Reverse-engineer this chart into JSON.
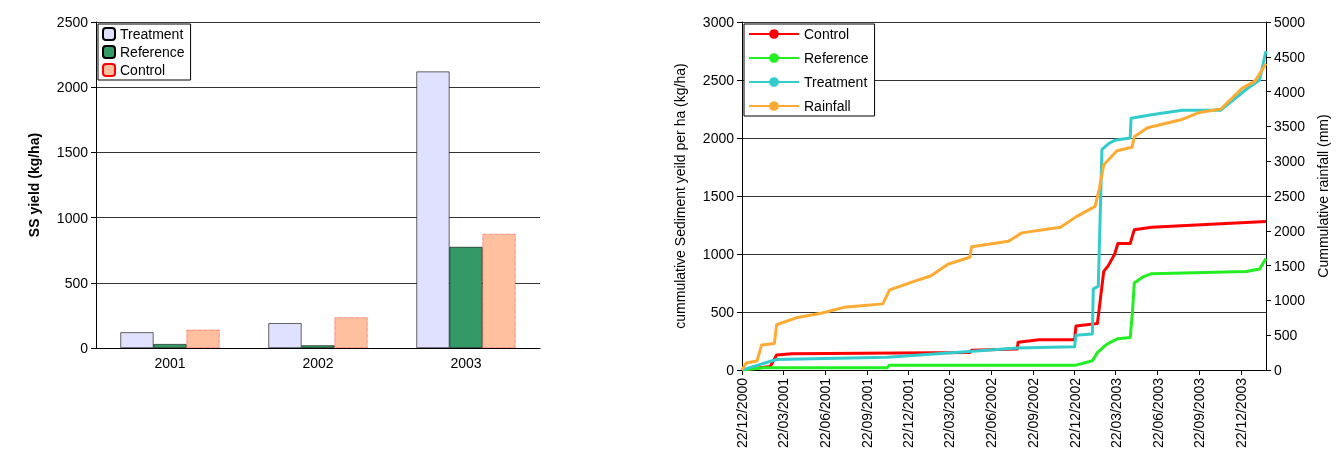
{
  "chart_data": [
    {
      "type": "bar",
      "ylabel": "SS yield (kg/ha)",
      "categories": [
        "2001",
        "2002",
        "2003"
      ],
      "series": [
        {
          "name": "Treatment",
          "color": "#e0e0ff",
          "values": [
            120,
            190,
            2120
          ]
        },
        {
          "name": "Reference",
          "color": "#339966",
          "values": [
            30,
            20,
            775
          ]
        },
        {
          "name": "Control",
          "color": "#ffc0a0",
          "values": [
            140,
            235,
            875
          ]
        }
      ],
      "ylim": [
        0,
        2500
      ],
      "yticks": [
        0,
        500,
        1000,
        1500,
        2000,
        2500
      ],
      "grid": "y",
      "legend": "top left"
    },
    {
      "type": "line",
      "ylabel": "cummulative Sediment yeild per ha (kg/ha)",
      "y2label": "Cummulative rainfall (mm)",
      "marker": "none",
      "series": [
        {
          "name": "Control",
          "color": "#ff0000",
          "x": [
            "2000-12-22",
            "2001-02-22",
            "2001-03-08",
            "2001-04-10",
            "2002-05-06",
            "2002-05-10",
            "2002-08-18",
            "2002-08-20",
            "2002-10-05",
            "2002-12-22",
            "2002-12-25",
            "2003-02-10",
            "2003-02-24",
            "2003-03-06",
            "2003-03-20",
            "2003-03-27",
            "2003-04-23",
            "2003-05-02",
            "2003-06-09",
            "2003-11-08",
            "2004-02-15"
          ],
          "values": [
            0,
            30,
            130,
            140,
            150,
            170,
            180,
            240,
            260,
            260,
            380,
            400,
            850,
            900,
            1000,
            1090,
            1090,
            1210,
            1230,
            1260,
            1280
          ]
        },
        {
          "name": "Reference",
          "color": "#22ee22",
          "x": [
            "2000-12-22",
            "2001-02-08",
            "2001-11-06",
            "2001-11-10",
            "2002-12-23",
            "2003-01-30",
            "2003-02-10",
            "2003-02-24",
            "2003-03-06",
            "2003-03-27",
            "2003-04-23",
            "2003-04-28",
            "2003-05-02",
            "2003-05-20",
            "2003-06-09",
            "2004-01-03",
            "2004-02-01",
            "2004-02-15"
          ],
          "values": [
            0,
            20,
            20,
            40,
            40,
            80,
            150,
            200,
            230,
            270,
            280,
            500,
            750,
            800,
            830,
            850,
            870,
            960
          ]
        },
        {
          "name": "Treatment",
          "color": "#33cccc",
          "x": [
            "2000-12-22",
            "2001-01-24",
            "2001-03-08",
            "2001-11-06",
            "2002-05-06",
            "2002-08-18",
            "2002-12-22",
            "2002-12-25",
            "2003-01-30",
            "2003-02-01",
            "2003-02-12",
            "2003-02-20",
            "2003-03-06",
            "2003-03-20",
            "2003-04-23",
            "2003-04-25",
            "2003-06-09",
            "2003-08-15",
            "2003-11-08",
            "2004-01-03",
            "2004-02-01",
            "2004-02-15"
          ],
          "values": [
            0,
            40,
            90,
            110,
            160,
            190,
            200,
            300,
            310,
            700,
            720,
            1900,
            1950,
            1980,
            2000,
            2170,
            2200,
            2240,
            2240,
            2420,
            2500,
            2750
          ]
        },
        {
          "name": "Rainfall",
          "color": "#ffaa33",
          "axis": "y2",
          "x": [
            "2000-12-22",
            "2000-12-31",
            "2001-01-24",
            "2001-02-03",
            "2001-03-03",
            "2001-03-08",
            "2001-04-20",
            "2001-06-16",
            "2001-08-03",
            "2001-10-27",
            "2001-11-11",
            "2002-01-02",
            "2002-02-09",
            "2002-03-19",
            "2002-05-06",
            "2002-05-10",
            "2002-07-30",
            "2002-08-28",
            "2002-11-21",
            "2002-12-25",
            "2003-02-05",
            "2003-02-14",
            "2003-02-24",
            "2003-03-25",
            "2003-04-27",
            "2003-05-02",
            "2003-05-31",
            "2003-08-15",
            "2003-09-22",
            "2003-11-08",
            "2003-12-25",
            "2004-01-22",
            "2004-02-15"
          ],
          "values": [
            0,
            100,
            130,
            360,
            380,
            650,
            750,
            820,
            900,
            950,
            1150,
            1270,
            1350,
            1520,
            1620,
            1770,
            1850,
            1970,
            2050,
            2200,
            2350,
            2600,
            2950,
            3150,
            3200,
            3350,
            3480,
            3600,
            3700,
            3750,
            4050,
            4150,
            4400
          ]
        }
      ],
      "xlim": [
        "2000-12-22",
        "2004-02-15"
      ],
      "xticks": [
        {
          "value": "2000-12-22",
          "label": "22/12/2000"
        },
        {
          "value": "2001-03-22",
          "label": "22/03/2001"
        },
        {
          "value": "2001-06-22",
          "label": "22/06/2001"
        },
        {
          "value": "2001-09-22",
          "label": "22/09/2001"
        },
        {
          "value": "2001-12-22",
          "label": "22/12/2001"
        },
        {
          "value": "2002-03-22",
          "label": "22/03/2002"
        },
        {
          "value": "2002-06-22",
          "label": "22/06/2002"
        },
        {
          "value": "2002-09-22",
          "label": "22/09/2002"
        },
        {
          "value": "2002-12-22",
          "label": "22/12/2002"
        },
        {
          "value": "2003-03-22",
          "label": "22/03/2003"
        },
        {
          "value": "2003-06-22",
          "label": "22/06/2003"
        },
        {
          "value": "2003-09-22",
          "label": "22/09/2003"
        },
        {
          "value": "2003-12-22",
          "label": "22/12/2003"
        }
      ],
      "ylim": [
        0,
        3000
      ],
      "yticks": [
        0,
        500,
        1000,
        1500,
        2000,
        2500,
        3000
      ],
      "y2lim": [
        0,
        5000
      ],
      "y2ticks": [
        0,
        500,
        1000,
        1500,
        2000,
        2500,
        3000,
        3500,
        4000,
        4500,
        5000
      ],
      "grid": "y",
      "legend": "top left"
    }
  ]
}
